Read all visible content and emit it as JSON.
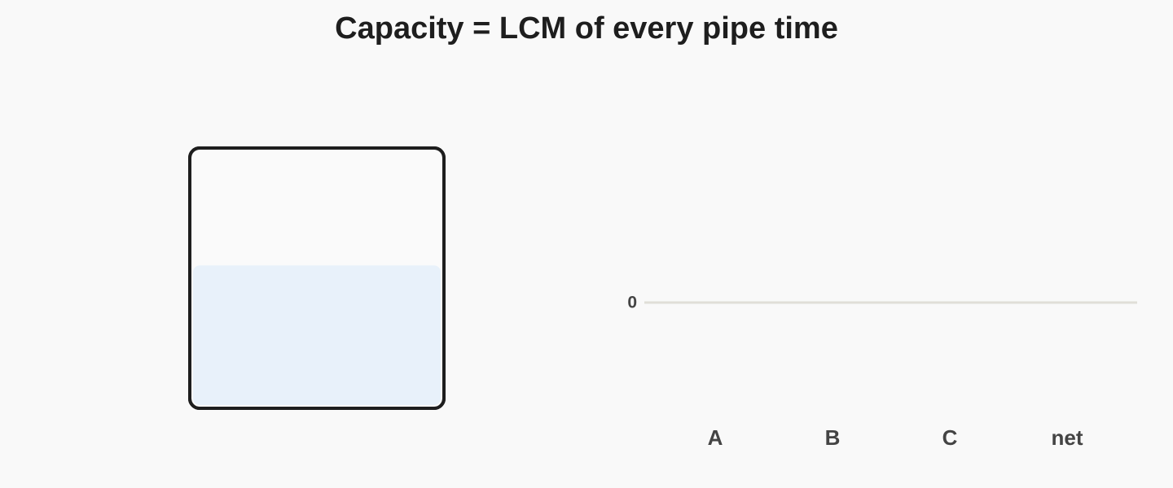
{
  "title": "Capacity = LCM of every pipe time",
  "tank": {
    "fill_level": 0.55
  },
  "chart_data": {
    "type": "bar",
    "categories": [
      "A",
      "B",
      "C",
      "net"
    ],
    "values": [
      0,
      0,
      0,
      0
    ],
    "ylim": [
      -1,
      1
    ],
    "yticks": [
      0
    ],
    "grid": true
  }
}
